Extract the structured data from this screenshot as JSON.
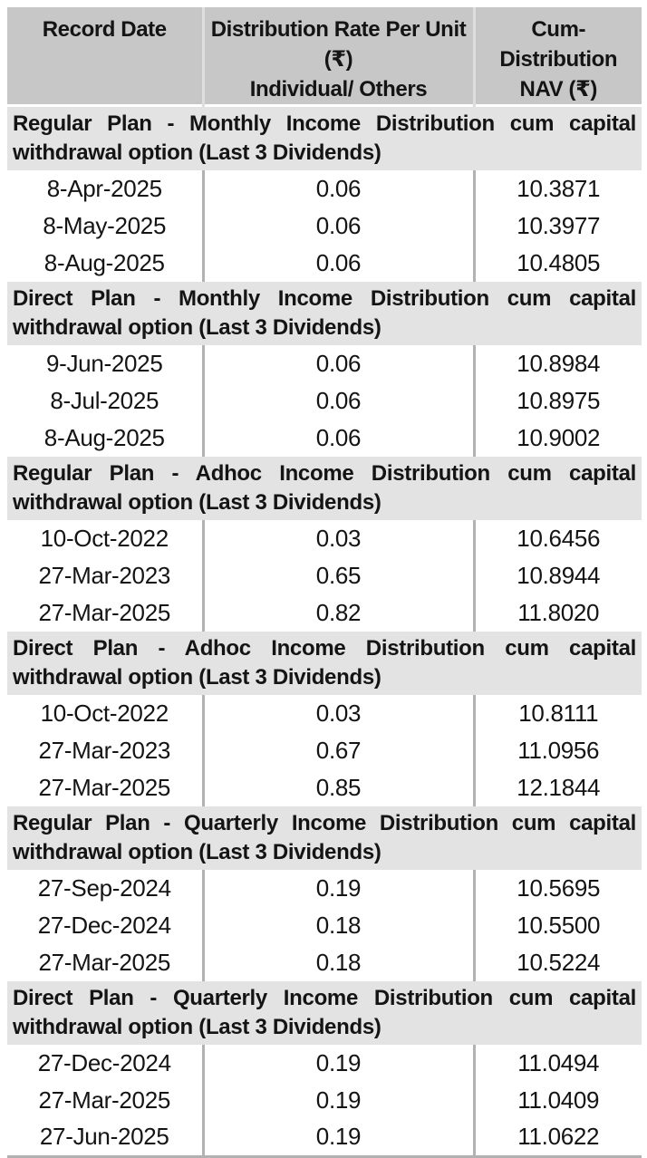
{
  "table": {
    "header": {
      "col1": "Record Date",
      "col2_line1": "Distribution Rate Per Unit  (₹)",
      "col2_line2": "Individual/ Others",
      "col3_line1": "Cum-Distribution",
      "col3_line2": "NAV (₹)"
    },
    "sections": [
      {
        "title": "Regular Plan - Monthly Income Distribution cum capital withdrawal option (Last 3 Dividends)",
        "rows": [
          [
            "8-Apr-2025",
            "0.06",
            "10.3871"
          ],
          [
            "8-May-2025",
            "0.06",
            "10.3977"
          ],
          [
            "8-Aug-2025",
            "0.06",
            "10.4805"
          ]
        ]
      },
      {
        "title": "Direct Plan - Monthly Income Distribution cum capital withdrawal option (Last 3 Dividends)",
        "rows": [
          [
            "9-Jun-2025",
            "0.06",
            "10.8984"
          ],
          [
            "8-Jul-2025",
            "0.06",
            "10.8975"
          ],
          [
            "8-Aug-2025",
            "0.06",
            "10.9002"
          ]
        ]
      },
      {
        "title": "Regular Plan - Adhoc Income Distribution cum capital withdrawal option (Last 3 Dividends)",
        "rows": [
          [
            "10-Oct-2022",
            "0.03",
            "10.6456"
          ],
          [
            "27-Mar-2023",
            "0.65",
            "10.8944"
          ],
          [
            "27-Mar-2025",
            "0.82",
            "11.8020"
          ]
        ]
      },
      {
        "title": "Direct Plan - Adhoc Income Distribution cum capital withdrawal option (Last 3 Dividends)",
        "rows": [
          [
            "10-Oct-2022",
            "0.03",
            "10.8111"
          ],
          [
            "27-Mar-2023",
            "0.67",
            "11.0956"
          ],
          [
            "27-Mar-2025",
            "0.85",
            "12.1844"
          ]
        ]
      },
      {
        "title": "Regular Plan - Quarterly Income Distribution cum capital withdrawal option (Last 3 Dividends)",
        "rows": [
          [
            "27-Sep-2024",
            "0.19",
            "10.5695"
          ],
          [
            "27-Dec-2024",
            "0.18",
            "10.5500"
          ],
          [
            "27-Mar-2025",
            "0.18",
            "10.5224"
          ]
        ]
      },
      {
        "title": "Direct Plan - Quarterly Income Distribution cum capital withdrawal option (Last 3 Dividends)",
        "rows": [
          [
            "27-Dec-2024",
            "0.19",
            "11.0494"
          ],
          [
            "27-Mar-2025",
            "0.19",
            "11.0409"
          ],
          [
            "27-Jun-2025",
            "0.19",
            "11.0622"
          ]
        ]
      }
    ]
  },
  "colors": {
    "header_bg": "#c7c7c7",
    "header_divider": "#dedede",
    "section_bg": "#e3e3e3",
    "body_divider": "#b2b2b2",
    "bottom_border": "#b2b2b2",
    "text": "#141414",
    "page_bg": "#ffffff"
  }
}
